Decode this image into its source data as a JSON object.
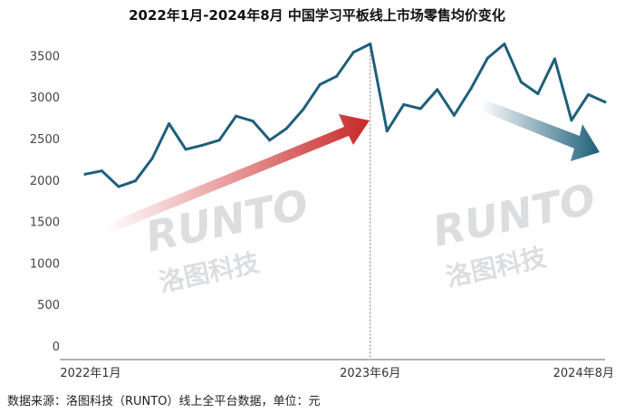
{
  "chart_data": {
    "type": "line",
    "title": "2022年1月-2024年8月 中国学习平板线上市场零售均价变化",
    "xlabel": "",
    "ylabel": "",
    "ylim": [
      0,
      3700
    ],
    "yticks": [
      0,
      500,
      1000,
      1500,
      2000,
      2500,
      3000,
      3500
    ],
    "x_tick_labels": [
      "2022年1月",
      "2023年6月",
      "2024年8月"
    ],
    "x": [
      "2022-01",
      "2022-02",
      "2022-03",
      "2022-04",
      "2022-05",
      "2022-06",
      "2022-07",
      "2022-08",
      "2022-09",
      "2022-10",
      "2022-11",
      "2022-12",
      "2023-01",
      "2023-02",
      "2023-03",
      "2023-04",
      "2023-05",
      "2023-06",
      "2023-07",
      "2023-08",
      "2023-09",
      "2023-10",
      "2023-11",
      "2023-12",
      "2024-01",
      "2024-02",
      "2024-03",
      "2024-04",
      "2024-05",
      "2024-06",
      "2024-07",
      "2024-08"
    ],
    "series": [
      {
        "values": [
          2070,
          2110,
          1920,
          1990,
          2260,
          2680,
          2370,
          2420,
          2480,
          2770,
          2710,
          2480,
          2620,
          2850,
          3150,
          3250,
          3540,
          3640,
          2590,
          2910,
          2860,
          3090,
          2780,
          3100,
          3470,
          3640,
          3180,
          3040,
          3460,
          2720,
          3030,
          2940
        ],
        "color": "#1f5f7a"
      }
    ],
    "grid": false,
    "reference_line_at": "2023-06"
  },
  "watermarks": [
    {
      "brand": "RUNTO",
      "name": "洛图科技"
    },
    {
      "brand": "RUNTO",
      "name": "洛图科技"
    }
  ],
  "source_note": "数据来源：洛图科技（RUNTO）线上全平台数据，单位：元"
}
